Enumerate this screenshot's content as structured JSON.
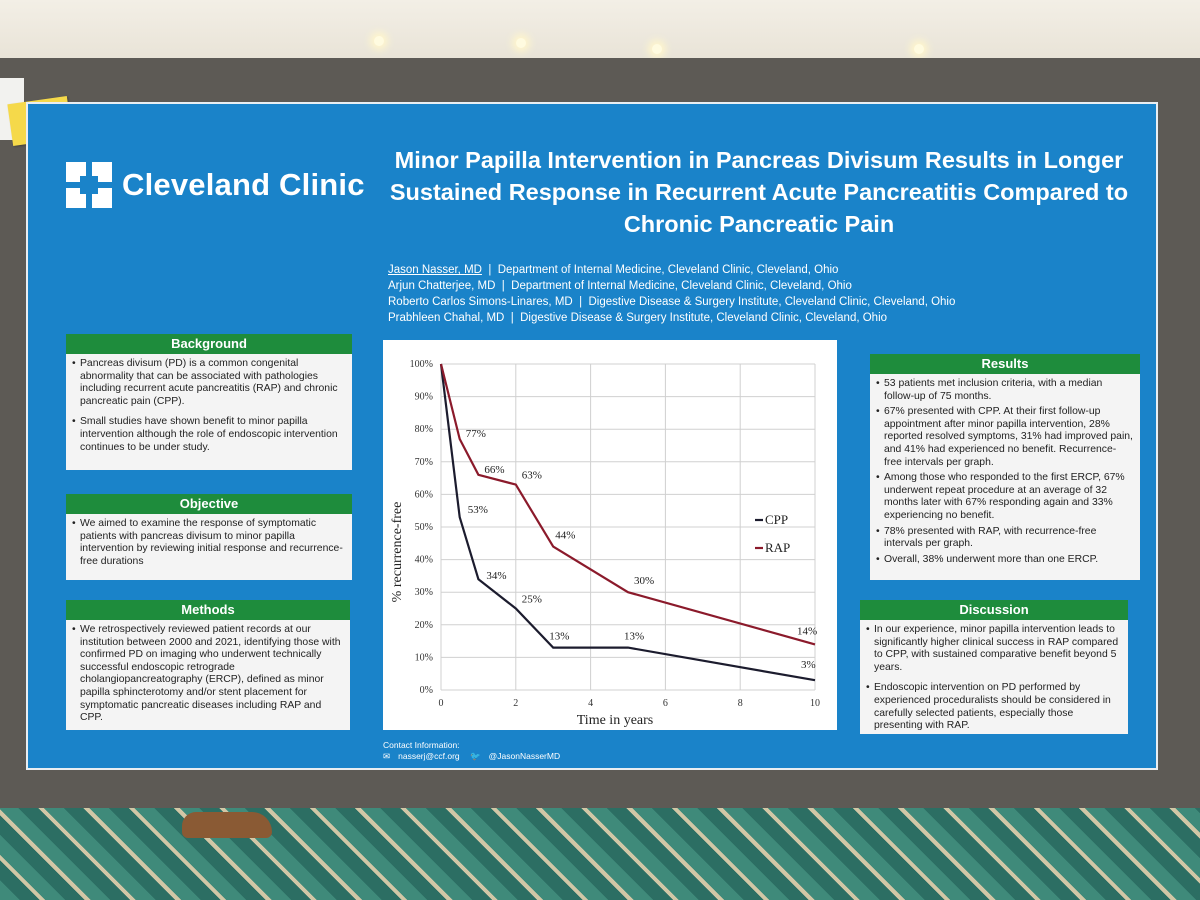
{
  "poster": {
    "logo_text": "Cleveland Clinic",
    "title": "Minor Papilla Intervention in Pancreas Divisum Results in Longer Sustained Response in Recurrent Acute Pancreatitis Compared to Chronic Pancreatic Pain",
    "authors": [
      {
        "name": "Jason Nasser, MD",
        "affiliation": "Department of Internal Medicine, Cleveland Clinic, Cleveland, Ohio"
      },
      {
        "name": "Arjun Chatterjee, MD",
        "affiliation": "Department of Internal Medicine, Cleveland Clinic, Cleveland, Ohio"
      },
      {
        "name": "Roberto Carlos Simons-Linares, MD",
        "affiliation": "Digestive Disease & Surgery Institute, Cleveland Clinic, Cleveland, Ohio"
      },
      {
        "name": "Prabhleen Chahal, MD",
        "affiliation": "Digestive Disease & Surgery Institute, Cleveland Clinic, Cleveland, Ohio"
      }
    ],
    "separator": "|",
    "background": {
      "heading": "Background",
      "items": [
        "Pancreas divisum (PD) is a common congenital abnormality that can be associated with pathologies including recurrent acute pancreatitis (RAP) and chronic pancreatic pain (CPP).",
        "Small studies have shown benefit to minor papilla intervention although the role of endoscopic intervention continues to be under study."
      ]
    },
    "objective": {
      "heading": "Objective",
      "items": [
        "We aimed to examine the response of symptomatic patients with pancreas divisum to minor papilla intervention by reviewing initial response and recurrence-free durations"
      ]
    },
    "methods": {
      "heading": "Methods",
      "items": [
        "We retrospectively reviewed patient records at our institution between 2000 and 2021, identifying those with confirmed PD on imaging who underwent technically successful endoscopic retrograde cholangiopancreatography (ERCP), defined as minor papilla sphincterotomy and/or stent placement for symptomatic pancreatic diseases including RAP and CPP."
      ]
    },
    "results": {
      "heading": "Results",
      "items": [
        "53 patients met inclusion criteria, with a median follow-up of 75 months.",
        "67% presented with CPP. At their first follow-up appointment after minor papilla intervention, 28% reported resolved symptoms, 31% had improved pain, and 41% had experienced no benefit. Recurrence-free intervals per graph.",
        "Among those who responded to the first ERCP, 67% underwent repeat procedure at an average of 32 months later with 67% responding again and 33% experiencing no benefit.",
        "78% presented with RAP, with recurrence-free intervals per graph.",
        "Overall, 38% underwent more than one ERCP."
      ]
    },
    "discussion": {
      "heading": "Discussion",
      "items": [
        "In our experience, minor papilla intervention leads to significantly higher clinical success in RAP compared to CPP, with sustained comparative benefit beyond 5 years.",
        "Endoscopic intervention on PD performed by experienced proceduralists should be considered in carefully selected patients, especially those presenting with RAP."
      ]
    },
    "contact": {
      "heading": "Contact Information:",
      "email": "nasserj@ccf.org",
      "twitter": "@JasonNasserMD"
    }
  },
  "colors": {
    "poster_blue": "#1a83c9",
    "section_green": "#1e8c3c",
    "cpp_line": "#1c1c2e",
    "rap_line": "#8b1a2b"
  },
  "chart_data": {
    "type": "line",
    "xlabel": "Time in years",
    "ylabel": "% recurrence-free",
    "xlim": [
      0,
      10
    ],
    "ylim": [
      0,
      100
    ],
    "x_ticks": [
      0,
      2,
      4,
      6,
      8,
      10
    ],
    "y_ticks": [
      "0%",
      "10%",
      "20%",
      "30%",
      "40%",
      "50%",
      "60%",
      "70%",
      "80%",
      "90%",
      "100%"
    ],
    "grid": true,
    "legend": "right",
    "series": [
      {
        "name": "CPP",
        "color": "#1c1c2e",
        "points": [
          [
            0,
            100
          ],
          [
            0.5,
            53
          ],
          [
            1,
            34
          ],
          [
            2,
            25
          ],
          [
            3,
            13
          ],
          [
            5,
            13
          ],
          [
            10,
            3
          ]
        ],
        "labels": [
          {
            "x": 0.5,
            "y": 53,
            "text": "53%"
          },
          {
            "x": 1,
            "y": 34,
            "text": "34%"
          },
          {
            "x": 2,
            "y": 25,
            "text": "25%"
          },
          {
            "x": 3,
            "y": 13,
            "text": "13%"
          },
          {
            "x": 5,
            "y": 13,
            "text": "13%"
          },
          {
            "x": 10,
            "y": 3,
            "text": "3%"
          }
        ]
      },
      {
        "name": "RAP",
        "color": "#8b1a2b",
        "points": [
          [
            0,
            100
          ],
          [
            0.5,
            77
          ],
          [
            1,
            66
          ],
          [
            2,
            63
          ],
          [
            3,
            44
          ],
          [
            5,
            30
          ],
          [
            10,
            14
          ]
        ],
        "labels": [
          {
            "x": 0.5,
            "y": 77,
            "text": "77%"
          },
          {
            "x": 1,
            "y": 66,
            "text": "66%"
          },
          {
            "x": 2,
            "y": 63,
            "text": "63%"
          },
          {
            "x": 3,
            "y": 44,
            "text": "44%"
          },
          {
            "x": 5,
            "y": 30,
            "text": "30%"
          },
          {
            "x": 10,
            "y": 14,
            "text": "14%"
          }
        ]
      }
    ]
  }
}
